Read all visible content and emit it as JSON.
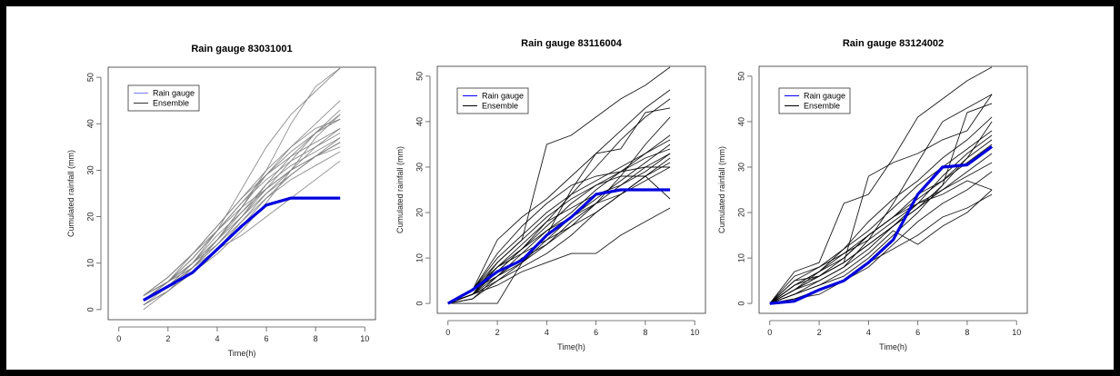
{
  "chart_data": [
    {
      "type": "line",
      "title": "Rain gauge 83031001",
      "xlabel": "Time(h)",
      "ylabel": "Cumulated rainfall (mm)",
      "xlim": [
        0,
        10
      ],
      "ylim": [
        0,
        50
      ],
      "xticks": [
        0,
        2,
        4,
        6,
        8,
        10
      ],
      "yticks": [
        0,
        10,
        20,
        30,
        40,
        50
      ],
      "ensemble_color": "#7a7a7a",
      "gauge_color": "#0000dd",
      "legend": {
        "position": "top-left",
        "entries": [
          {
            "label": "Rain gauge",
            "color": "#7a7aff"
          },
          {
            "label": "Ensemble",
            "color": "#333333"
          }
        ]
      },
      "x": [
        1,
        2,
        3,
        4,
        5,
        6,
        7,
        8,
        9
      ],
      "series": [
        {
          "name": "Rain gauge",
          "values": [
            2,
            5,
            8,
            13,
            18,
            22.5,
            24,
            24,
            24
          ]
        },
        {
          "values": [
            2,
            5,
            10,
            17,
            26,
            35,
            42,
            47,
            52
          ]
        },
        {
          "values": [
            3,
            6,
            9,
            14,
            20,
            26,
            32,
            38,
            43
          ]
        },
        {
          "values": [
            2,
            6,
            11,
            17,
            23,
            29,
            34,
            38,
            42
          ]
        },
        {
          "values": [
            1,
            4,
            8,
            13,
            19,
            25,
            30,
            35,
            39
          ]
        },
        {
          "values": [
            3,
            6,
            10,
            15,
            21,
            27,
            31,
            34,
            37
          ]
        },
        {
          "values": [
            2,
            5,
            9,
            14,
            20,
            27,
            33,
            38,
            41
          ]
        },
        {
          "values": [
            3,
            7,
            12,
            17,
            22,
            26,
            30,
            33,
            36
          ]
        },
        {
          "values": [
            2,
            5,
            9,
            15,
            22,
            29,
            35,
            40,
            45
          ]
        },
        {
          "values": [
            1,
            5,
            10,
            16,
            21,
            26,
            30,
            33,
            35
          ]
        },
        {
          "values": [
            2,
            6,
            11,
            17,
            23,
            28,
            32,
            35,
            38
          ]
        },
        {
          "values": [
            3,
            7,
            12,
            18,
            24,
            29,
            33,
            36,
            39
          ]
        },
        {
          "values": [
            2,
            5,
            8,
            12,
            17,
            23,
            30,
            37,
            42
          ]
        },
        {
          "values": [
            0,
            4,
            9,
            15,
            22,
            30,
            40,
            48,
            52
          ]
        },
        {
          "values": [
            2,
            6,
            10,
            15,
            20,
            25,
            29,
            33,
            36
          ]
        },
        {
          "values": [
            3,
            6,
            10,
            14,
            19,
            24,
            28,
            31,
            34
          ]
        },
        {
          "values": [
            1,
            4,
            8,
            13,
            18,
            24,
            29,
            33,
            37
          ]
        },
        {
          "values": [
            2,
            6,
            12,
            18,
            24,
            30,
            35,
            39,
            41
          ]
        },
        {
          "values": [
            2,
            5,
            9,
            13,
            16,
            20,
            24,
            28,
            32
          ]
        }
      ]
    },
    {
      "type": "line",
      "title": "Rain gauge 83116004",
      "xlabel": "Time(h)",
      "ylabel": "Cumulated rainfall (mm)",
      "xlim": [
        0,
        10
      ],
      "ylim": [
        0,
        50
      ],
      "xticks": [
        0,
        2,
        4,
        6,
        8,
        10
      ],
      "yticks": [
        0,
        10,
        20,
        30,
        40,
        50
      ],
      "ensemble_color": "#000000",
      "gauge_color": "#0000dd",
      "legend": {
        "position": "top-left",
        "entries": [
          {
            "label": "Rain gauge",
            "color": "#0000ff"
          },
          {
            "label": "Ensemble",
            "color": "#000000"
          }
        ]
      },
      "x": [
        0,
        1,
        2,
        3,
        4,
        5,
        6,
        7,
        8,
        9
      ],
      "series": [
        {
          "name": "Rain gauge",
          "values": [
            0,
            3,
            7,
            9.5,
            15,
            19,
            24,
            25,
            25,
            25
          ]
        },
        {
          "values": [
            0,
            2,
            9,
            14,
            35,
            37,
            41,
            45,
            48,
            52
          ]
        },
        {
          "values": [
            0,
            3,
            14,
            19,
            23,
            28,
            33,
            38,
            43,
            47
          ]
        },
        {
          "values": [
            0,
            1,
            6,
            11,
            16,
            20,
            25,
            29,
            33,
            37
          ]
        },
        {
          "values": [
            0,
            3,
            8,
            12,
            18,
            24,
            30,
            36,
            41,
            45
          ]
        },
        {
          "values": [
            0,
            2,
            5,
            8,
            11,
            15,
            20,
            24,
            27,
            30
          ]
        },
        {
          "values": [
            0,
            3,
            6,
            9,
            14,
            19,
            23,
            27,
            31,
            35
          ]
        },
        {
          "values": [
            0,
            2,
            4,
            7,
            9,
            11,
            11,
            15,
            18,
            21
          ]
        },
        {
          "values": [
            0,
            3,
            10,
            15,
            20,
            24,
            27,
            30,
            33,
            36
          ]
        },
        {
          "values": [
            0,
            2,
            7,
            12,
            16,
            19,
            22,
            24,
            28,
            32
          ]
        },
        {
          "values": [
            0,
            3,
            9,
            14,
            19,
            23,
            26,
            29,
            32,
            34
          ]
        },
        {
          "values": [
            0,
            2,
            6,
            10,
            13,
            17,
            22,
            28,
            35,
            41
          ]
        },
        {
          "values": [
            0,
            0,
            0,
            9,
            15,
            25,
            33,
            34,
            42,
            43
          ]
        },
        {
          "values": [
            0,
            3,
            11,
            17,
            22,
            26,
            28,
            29,
            30,
            30
          ]
        },
        {
          "values": [
            0,
            2,
            8,
            11,
            14,
            17,
            20,
            24,
            28,
            31
          ]
        },
        {
          "values": [
            0,
            3,
            8,
            13,
            18,
            21,
            24,
            26,
            29,
            33
          ]
        },
        {
          "values": [
            0,
            1,
            5,
            9,
            13,
            18,
            22,
            26,
            30,
            33
          ]
        },
        {
          "values": [
            0,
            2,
            7,
            12,
            17,
            22,
            26,
            28,
            28,
            23
          ]
        }
      ]
    },
    {
      "type": "line",
      "title": "Rain gauge 83124002",
      "xlabel": "Time(h)",
      "ylabel": "Cumulated rainfall (mm)",
      "xlim": [
        0,
        10
      ],
      "ylim": [
        0,
        50
      ],
      "xticks": [
        0,
        2,
        4,
        6,
        8,
        10
      ],
      "yticks": [
        0,
        10,
        20,
        30,
        40,
        50
      ],
      "ensemble_color": "#000000",
      "gauge_color": "#0000dd",
      "legend": {
        "position": "top-left",
        "entries": [
          {
            "label": "Rain gauge",
            "color": "#0000ff"
          },
          {
            "label": "Ensemble",
            "color": "#000000"
          }
        ]
      },
      "x": [
        0,
        1,
        2,
        3,
        4,
        5,
        6,
        7,
        8,
        9
      ],
      "series": [
        {
          "name": "Rain gauge",
          "values": [
            0,
            0.5,
            3,
            5,
            9,
            14,
            24,
            30,
            30.5,
            34.5
          ]
        },
        {
          "values": [
            0,
            7,
            9,
            22,
            24,
            32,
            41,
            45,
            49,
            52
          ]
        },
        {
          "values": [
            0,
            5,
            6,
            9,
            28,
            31,
            33,
            36,
            38,
            46
          ]
        },
        {
          "values": [
            0,
            3,
            5,
            8,
            14,
            22,
            31,
            40,
            43,
            46
          ]
        },
        {
          "values": [
            0,
            2,
            4,
            6,
            10,
            15,
            20,
            26,
            32,
            36
          ]
        },
        {
          "values": [
            0,
            4,
            7,
            10,
            15,
            19,
            23,
            27,
            31,
            35
          ]
        },
        {
          "values": [
            0,
            1,
            3,
            5,
            8,
            13,
            18,
            22,
            25,
            29
          ]
        },
        {
          "values": [
            0,
            3,
            6,
            9,
            13,
            17,
            21,
            25,
            29,
            33
          ]
        },
        {
          "values": [
            0,
            5,
            8,
            11,
            14,
            18,
            22,
            25,
            28,
            31
          ]
        },
        {
          "values": [
            0,
            2,
            5,
            8,
            12,
            17,
            22,
            28,
            33,
            37
          ]
        },
        {
          "values": [
            0,
            4,
            7,
            11,
            15,
            19,
            22,
            24,
            27,
            25
          ]
        },
        {
          "values": [
            0,
            3,
            6,
            10,
            15,
            19,
            24,
            27,
            32,
            40
          ]
        },
        {
          "values": [
            0,
            6,
            8,
            12,
            16,
            21,
            26,
            30,
            34,
            38
          ]
        },
        {
          "values": [
            0,
            2,
            4,
            7,
            11,
            16,
            13,
            17,
            20,
            25
          ]
        },
        {
          "values": [
            0,
            3,
            7,
            12,
            18,
            23,
            27,
            32,
            36,
            41
          ]
        },
        {
          "values": [
            0,
            4,
            6,
            9,
            13,
            17,
            21,
            26,
            42,
            44
          ]
        },
        {
          "values": [
            0,
            1,
            2,
            5,
            9,
            12,
            15,
            19,
            21,
            24
          ]
        }
      ]
    }
  ]
}
